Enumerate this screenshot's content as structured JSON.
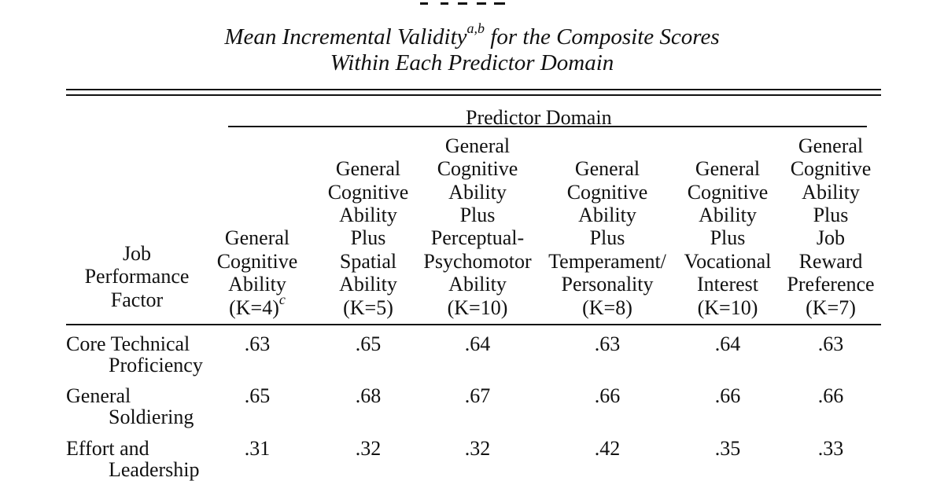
{
  "table": {
    "title_line1": "Mean Incremental Validity",
    "title_sup": "a,b",
    "title_line1_rest": " for the Composite Scores",
    "title_line2": "Within Each Predictor Domain",
    "spanner": "Predictor Domain",
    "stub_header": [
      "Job",
      "Performance",
      "Factor"
    ],
    "columns": [
      {
        "lines": [
          "General",
          "Cognitive",
          "Ability"
        ],
        "k": "(K=4)",
        "k_sup": "c"
      },
      {
        "lines": [
          "General",
          "Cognitive",
          "Ability",
          "Plus",
          "Spatial",
          "Ability"
        ],
        "k": "(K=5)",
        "k_sup": ""
      },
      {
        "lines": [
          "General",
          "Cognitive",
          "Ability",
          "Plus",
          "Perceptual-",
          "Psychomotor",
          "Ability"
        ],
        "k": "(K=10)",
        "k_sup": ""
      },
      {
        "lines": [
          "General",
          "Cognitive",
          "Ability",
          "Plus",
          "Temperament/",
          "Personality"
        ],
        "k": "(K=8)",
        "k_sup": ""
      },
      {
        "lines": [
          "General",
          "Cognitive",
          "Ability",
          "Plus",
          "Vocational",
          "Interest"
        ],
        "k": "(K=10)",
        "k_sup": ""
      },
      {
        "lines": [
          "General",
          "Cognitive",
          "Ability",
          "Plus",
          "Job",
          "Reward",
          "Preference"
        ],
        "k": "(K=7)",
        "k_sup": ""
      }
    ],
    "rows": [
      {
        "label": [
          "Core Technical",
          "Proficiency"
        ],
        "values": [
          ".63",
          ".65",
          ".64",
          ".63",
          ".64",
          ".63"
        ]
      },
      {
        "label": [
          "General",
          "Soldiering"
        ],
        "values": [
          ".65",
          ".68",
          ".67",
          ".66",
          ".66",
          ".66"
        ]
      },
      {
        "label": [
          "Effort and",
          "Leadership"
        ],
        "values": [
          ".31",
          ".32",
          ".32",
          ".42",
          ".35",
          ".33"
        ]
      }
    ]
  }
}
